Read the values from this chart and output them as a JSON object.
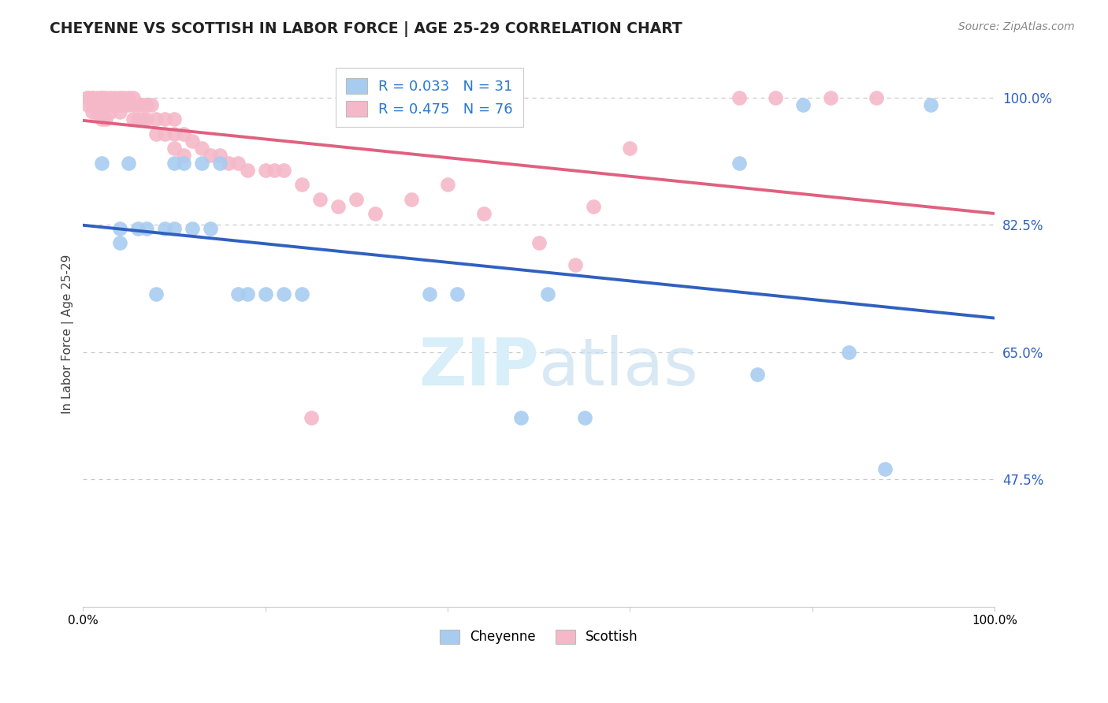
{
  "title": "CHEYENNE VS SCOTTISH IN LABOR FORCE | AGE 25-29 CORRELATION CHART",
  "source_text": "Source: ZipAtlas.com",
  "ylabel": "In Labor Force | Age 25-29",
  "xlim": [
    0.0,
    1.0
  ],
  "ylim": [
    0.3,
    1.05
  ],
  "yticks": [
    0.475,
    0.65,
    0.825,
    1.0
  ],
  "ytick_labels": [
    "47.5%",
    "65.0%",
    "82.5%",
    "100.0%"
  ],
  "xticks": [
    0.0,
    0.2,
    0.4,
    0.6,
    0.8,
    1.0
  ],
  "xtick_labels": [
    "0.0%",
    "",
    "",
    "",
    "",
    "100.0%"
  ],
  "cheyenne_color": "#A8CCF0",
  "scottish_color": "#F5B8C8",
  "cheyenne_line_color": "#3060C0",
  "scottish_line_color": "#E06080",
  "cheyenne_R": 0.033,
  "cheyenne_N": 31,
  "scottish_R": 0.475,
  "scottish_N": 76,
  "legend_R_color": "#2878D0",
  "legend_N_color": "#28A028",
  "background_color": "#FFFFFF",
  "watermark_color": "#D8EEF8",
  "cheyenne_x": [
    0.02,
    0.04,
    0.04,
    0.05,
    0.06,
    0.07,
    0.08,
    0.09,
    0.1,
    0.1,
    0.11,
    0.12,
    0.13,
    0.14,
    0.15,
    0.17,
    0.18,
    0.2,
    0.22,
    0.24,
    0.38,
    0.41,
    0.48,
    0.51,
    0.55,
    0.72,
    0.74,
    0.79,
    0.84,
    0.88,
    0.93
  ],
  "cheyenne_y": [
    0.91,
    0.82,
    0.8,
    0.91,
    0.82,
    0.82,
    0.73,
    0.82,
    0.91,
    0.82,
    0.91,
    0.82,
    0.91,
    0.82,
    0.91,
    0.73,
    0.73,
    0.73,
    0.73,
    0.73,
    0.73,
    0.73,
    0.56,
    0.73,
    0.56,
    0.91,
    0.62,
    0.99,
    0.65,
    0.49,
    0.99
  ],
  "scottish_x": [
    0.005,
    0.005,
    0.005,
    0.01,
    0.01,
    0.01,
    0.01,
    0.015,
    0.015,
    0.015,
    0.02,
    0.02,
    0.02,
    0.02,
    0.02,
    0.025,
    0.025,
    0.025,
    0.03,
    0.03,
    0.03,
    0.035,
    0.035,
    0.04,
    0.04,
    0.04,
    0.045,
    0.045,
    0.05,
    0.05,
    0.055,
    0.055,
    0.055,
    0.06,
    0.06,
    0.065,
    0.065,
    0.07,
    0.07,
    0.075,
    0.08,
    0.08,
    0.09,
    0.09,
    0.1,
    0.1,
    0.1,
    0.11,
    0.11,
    0.12,
    0.13,
    0.14,
    0.15,
    0.16,
    0.17,
    0.18,
    0.2,
    0.21,
    0.22,
    0.24,
    0.26,
    0.28,
    0.3,
    0.32,
    0.36,
    0.4,
    0.44,
    0.5,
    0.54,
    0.56,
    0.6,
    0.72,
    0.76,
    0.82,
    0.87,
    0.25
  ],
  "scottish_y": [
    1.0,
    1.0,
    0.99,
    1.0,
    1.0,
    0.99,
    0.98,
    1.0,
    0.99,
    0.98,
    1.0,
    1.0,
    0.99,
    0.98,
    0.97,
    1.0,
    0.99,
    0.97,
    1.0,
    0.99,
    0.98,
    1.0,
    0.99,
    1.0,
    0.99,
    0.98,
    1.0,
    0.99,
    1.0,
    0.99,
    1.0,
    0.99,
    0.97,
    0.99,
    0.97,
    0.99,
    0.97,
    0.99,
    0.97,
    0.99,
    0.97,
    0.95,
    0.97,
    0.95,
    0.97,
    0.95,
    0.93,
    0.95,
    0.92,
    0.94,
    0.93,
    0.92,
    0.92,
    0.91,
    0.91,
    0.9,
    0.9,
    0.9,
    0.9,
    0.88,
    0.86,
    0.85,
    0.86,
    0.84,
    0.86,
    0.88,
    0.84,
    0.8,
    0.77,
    0.85,
    0.93,
    1.0,
    1.0,
    1.0,
    1.0,
    0.56
  ]
}
